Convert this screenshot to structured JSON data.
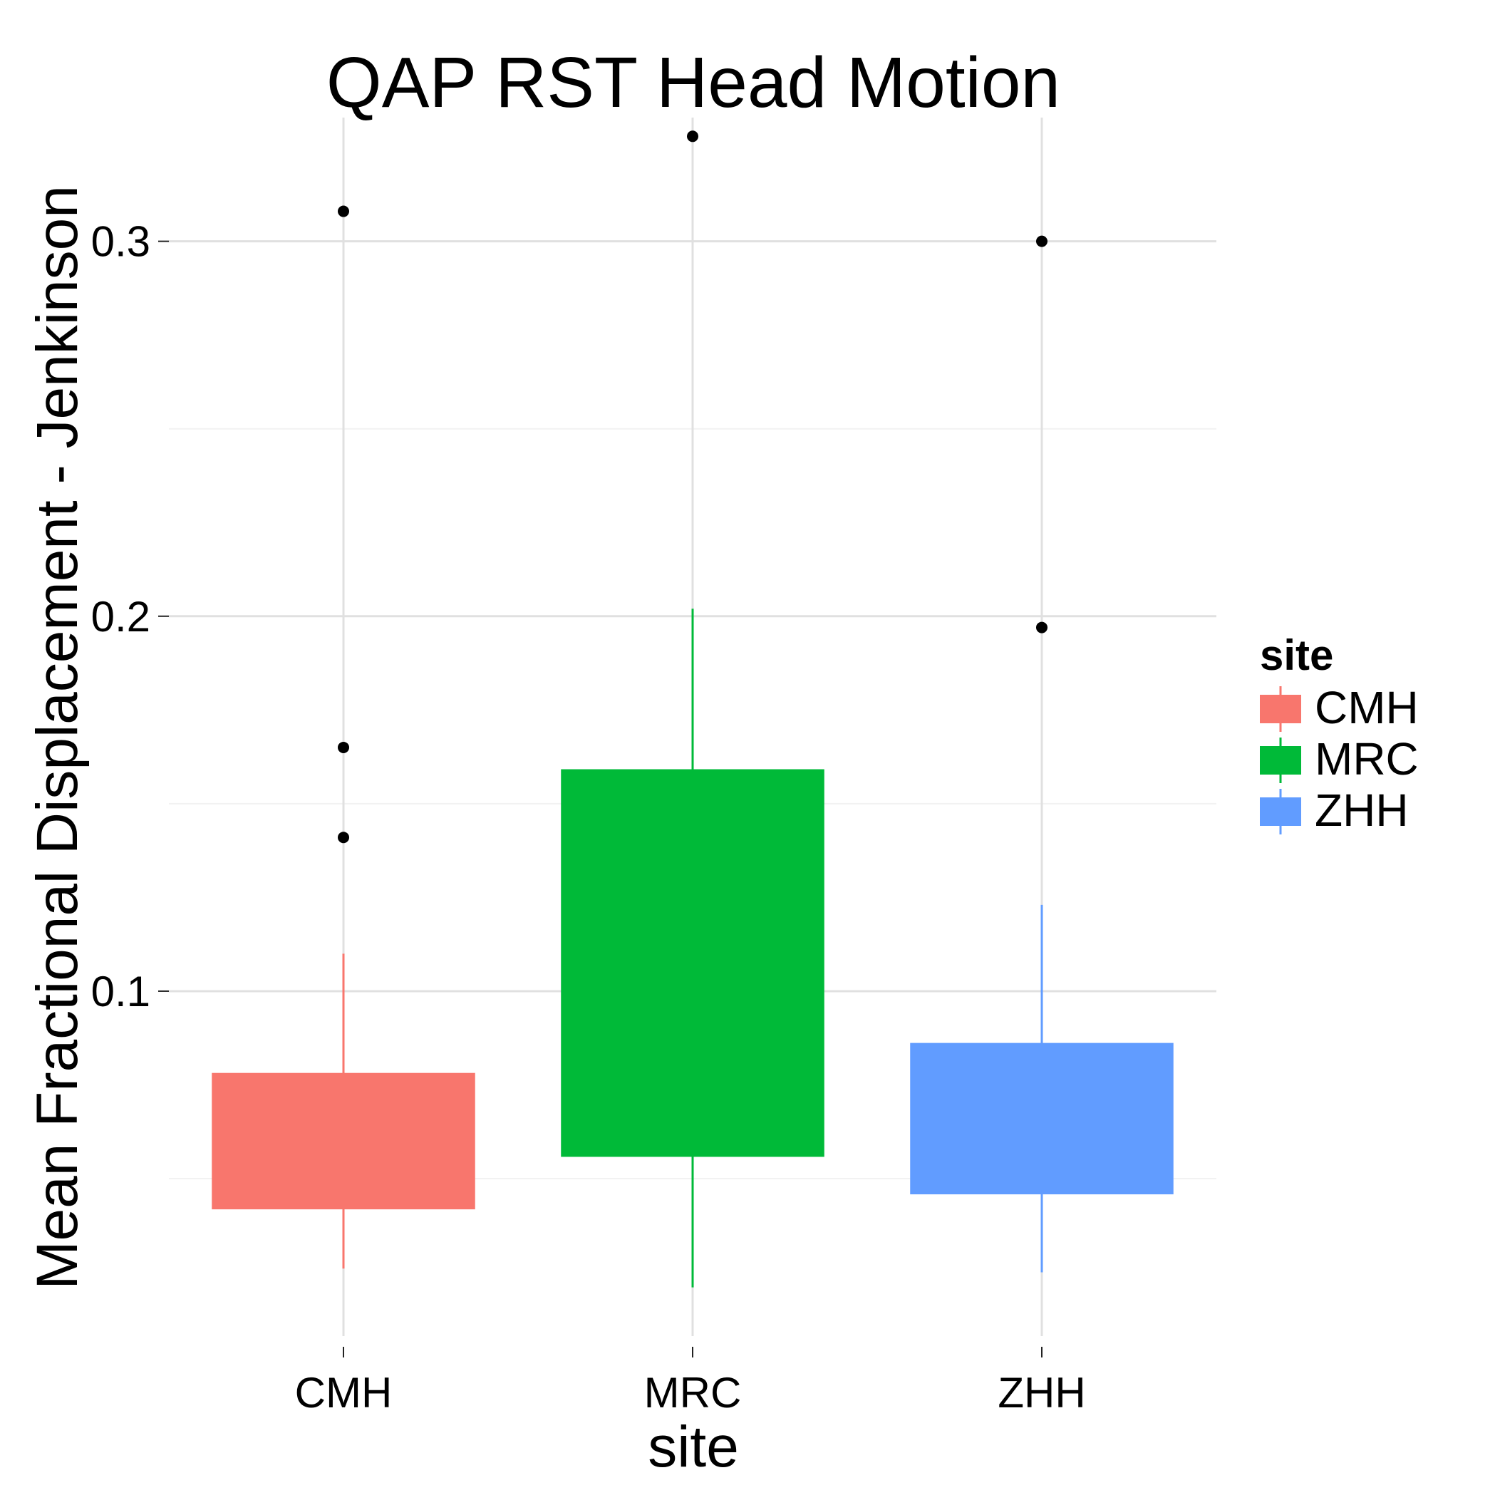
{
  "chart_data": {
    "type": "boxplot",
    "title": "QAP RST Head Motion",
    "xlabel": "site",
    "ylabel": "Mean Fractional Displacement - Jenkinson",
    "categories": [
      "CMH",
      "MRC",
      "ZHH"
    ],
    "ylim": [
      0.008,
      0.333
    ],
    "yticks": [
      0.1,
      0.2,
      0.3
    ],
    "ytick_labels": [
      "0.1",
      "0.2",
      "0.3"
    ],
    "grid": true,
    "legend": {
      "title": "site",
      "position": "right",
      "entries": [
        "CMH",
        "MRC",
        "ZHH"
      ]
    },
    "series": [
      {
        "name": "CMH",
        "color": "#F8766D",
        "whisker_low": 0.026,
        "q1": 0.042,
        "q3": 0.078,
        "whisker_high": 0.11,
        "outliers": [
          0.141,
          0.165,
          0.308
        ]
      },
      {
        "name": "MRC",
        "color": "#00BA38",
        "whisker_low": 0.021,
        "q1": 0.056,
        "q3": 0.159,
        "whisker_high": 0.202,
        "outliers": [
          0.328
        ]
      },
      {
        "name": "ZHH",
        "color": "#619CFF",
        "whisker_low": 0.025,
        "q1": 0.046,
        "q3": 0.086,
        "whisker_high": 0.123,
        "outliers": [
          0.197,
          0.3
        ]
      }
    ]
  }
}
